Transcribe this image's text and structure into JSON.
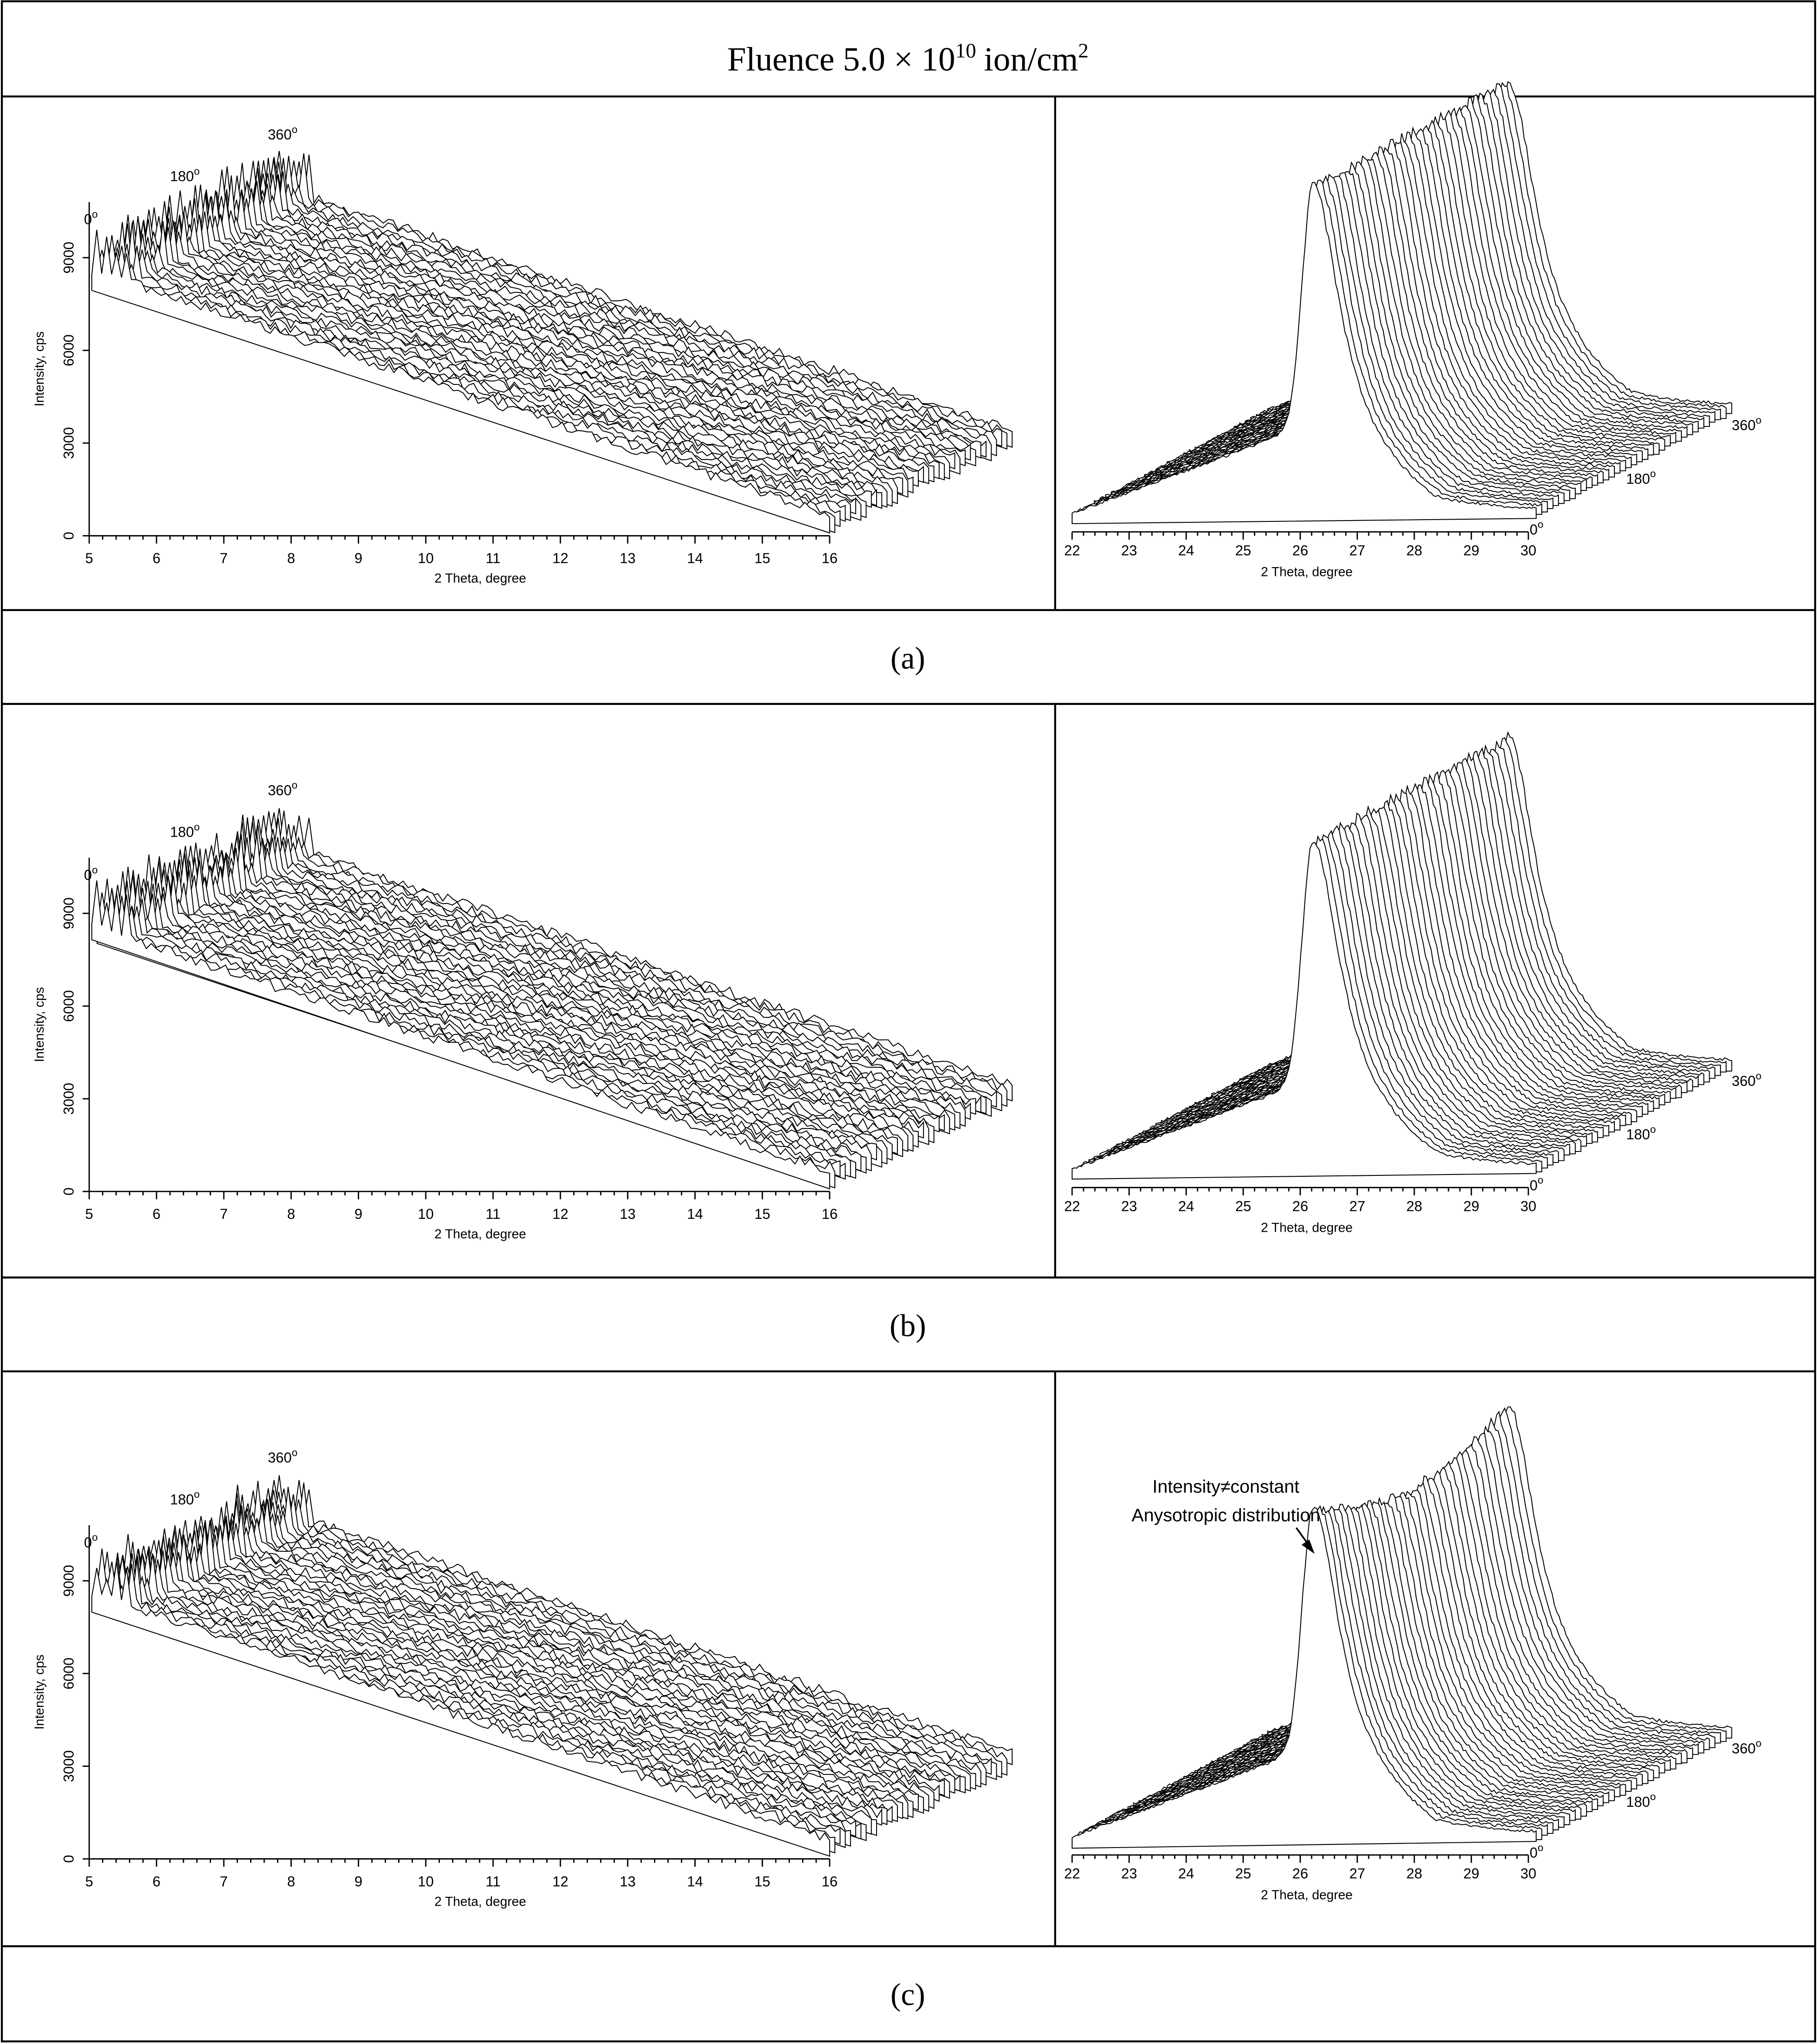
{
  "title": {
    "text": "Fluence 5.0 × 10",
    "exp": "10",
    "unit": "ion/cm",
    "unit_exp": "2"
  },
  "panels": [
    {
      "caption": "(a)",
      "left": {
        "ylabel": "Intensity, cps",
        "xlabel": "2 Theta, degree",
        "ylim": [
          0,
          10800
        ],
        "yticks": [
          0,
          3000,
          6000,
          9000
        ],
        "xticks": [
          5,
          6,
          7,
          8,
          9,
          10,
          11,
          12,
          13,
          14,
          15,
          16
        ],
        "angles": [
          {
            "text": "0",
            "sup": "o"
          },
          {
            "text": "180",
            "sup": "o"
          },
          {
            "text": "360",
            "sup": "o"
          }
        ]
      },
      "right": {
        "xlabel": "2 Theta, degree",
        "xticks": [
          22,
          23,
          24,
          25,
          26,
          27,
          28,
          29,
          30
        ],
        "angles": [
          {
            "text": "0",
            "sup": "o"
          },
          {
            "text": "180",
            "sup": "o"
          },
          {
            "text": "360",
            "sup": "o"
          }
        ]
      }
    },
    {
      "caption": "(b)",
      "left": {
        "ylabel": "Intensity, cps",
        "xlabel": "2 Theta, degree",
        "ylim": [
          0,
          10800
        ],
        "yticks": [
          0,
          3000,
          6000,
          9000
        ],
        "xticks": [
          5,
          6,
          7,
          8,
          9,
          10,
          11,
          12,
          13,
          14,
          15,
          16
        ],
        "angles": [
          {
            "text": "0",
            "sup": "o"
          },
          {
            "text": "180",
            "sup": "o"
          },
          {
            "text": "360",
            "sup": "o"
          }
        ]
      },
      "right": {
        "xlabel": "2 Theta, degree",
        "xticks": [
          22,
          23,
          24,
          25,
          26,
          27,
          28,
          29,
          30
        ],
        "angles": [
          {
            "text": "0",
            "sup": "o"
          },
          {
            "text": "180",
            "sup": "o"
          },
          {
            "text": "360",
            "sup": "o"
          }
        ]
      }
    },
    {
      "caption": "(c)",
      "left": {
        "ylabel": "Intensity, cps",
        "xlabel": "2 Theta, degree",
        "ylim": [
          0,
          10800
        ],
        "yticks": [
          0,
          3000,
          6000,
          9000
        ],
        "xticks": [
          5,
          6,
          7,
          8,
          9,
          10,
          11,
          12,
          13,
          14,
          15,
          16
        ],
        "angles": [
          {
            "text": "0",
            "sup": "o"
          },
          {
            "text": "180",
            "sup": "o"
          },
          {
            "text": "360",
            "sup": "o"
          }
        ]
      },
      "right": {
        "xlabel": "2 Theta, degree",
        "xticks": [
          22,
          23,
          24,
          25,
          26,
          27,
          28,
          29,
          30
        ],
        "angles": [
          {
            "text": "0",
            "sup": "o"
          },
          {
            "text": "180",
            "sup": "o"
          },
          {
            "text": "360",
            "sup": "o"
          }
        ],
        "annotation": [
          "Intensity≠constant",
          "Anysotropic distribution"
        ]
      }
    }
  ]
}
